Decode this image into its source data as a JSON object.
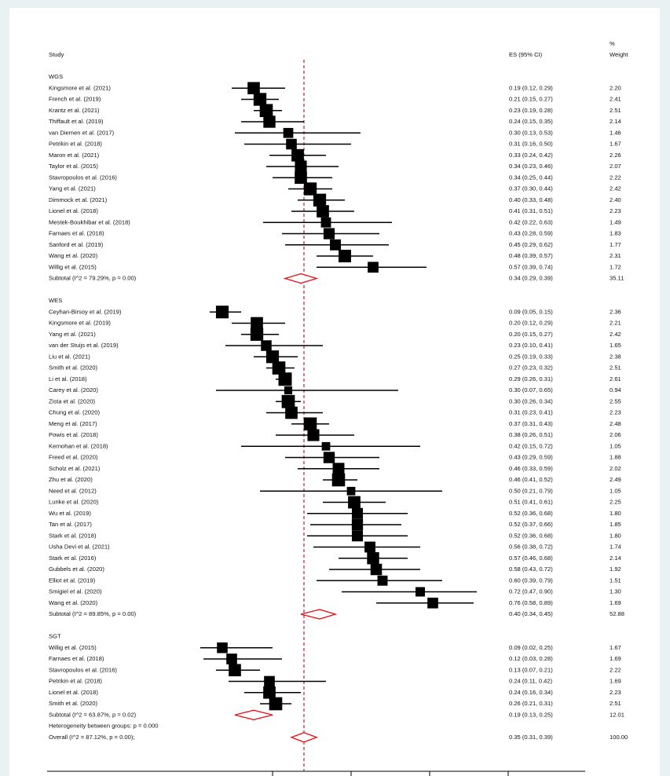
{
  "chart_data": {
    "type": "forest",
    "headers": {
      "study": "Study",
      "es": "ES (95% CI)",
      "weight_top": "%",
      "weight": "Weight"
    },
    "xlim": [
      0,
      1
    ],
    "xticks": [
      0.25,
      0.5,
      0.75,
      1
    ],
    "square_color": "#000000",
    "diamond_color": "#e8141c",
    "reference_color": "#b5252a",
    "groups": [
      {
        "name": "WGS",
        "studies": [
          {
            "name": "Kingsmore et al. (2021)",
            "es": 0.19,
            "ci": [
              0.12,
              0.29
            ],
            "label": "0.19 (0.12, 0.29)",
            "weight": 2.2,
            "weight_label": "2.20"
          },
          {
            "name": "French et al. (2019)",
            "es": 0.21,
            "ci": [
              0.15,
              0.27
            ],
            "label": "0.21 (0.15, 0.27)",
            "weight": 2.41,
            "weight_label": "2.41"
          },
          {
            "name": "Krantz et al. (2021)",
            "es": 0.23,
            "ci": [
              0.19,
              0.28
            ],
            "label": "0.23 (0.19, 0.28)",
            "weight": 2.51,
            "weight_label": "2.51"
          },
          {
            "name": "Thiffault et al. (2019)",
            "es": 0.24,
            "ci": [
              0.15,
              0.35
            ],
            "label": "0.24 (0.15, 0.35)",
            "weight": 2.14,
            "weight_label": "2.14"
          },
          {
            "name": "van Diemen et al. (2017)",
            "es": 0.3,
            "ci": [
              0.13,
              0.53
            ],
            "label": "0.30 (0.13, 0.53)",
            "weight": 1.46,
            "weight_label": "1.46"
          },
          {
            "name": "Petrikin et al. (2018)",
            "es": 0.31,
            "ci": [
              0.16,
              0.5
            ],
            "label": "0.31 (0.16, 0.50)",
            "weight": 1.67,
            "weight_label": "1.67"
          },
          {
            "name": "Maron et al. (2021)",
            "es": 0.33,
            "ci": [
              0.24,
              0.42
            ],
            "label": "0.33 (0.24, 0.42)",
            "weight": 2.26,
            "weight_label": "2.26"
          },
          {
            "name": "Taylor et al. (2015)",
            "es": 0.34,
            "ci": [
              0.23,
              0.46
            ],
            "label": "0.34 (0.23, 0.46)",
            "weight": 2.07,
            "weight_label": "2.07"
          },
          {
            "name": "Stavropoulos et al. (2016)",
            "es": 0.34,
            "ci": [
              0.25,
              0.44
            ],
            "label": "0.34 (0.25, 0.44)",
            "weight": 2.22,
            "weight_label": "2.22"
          },
          {
            "name": "Yang et al. (2021)",
            "es": 0.37,
            "ci": [
              0.3,
              0.44
            ],
            "label": "0.37 (0.30, 0.44)",
            "weight": 2.42,
            "weight_label": "2.42"
          },
          {
            "name": "Dimmock et al. (2021)",
            "es": 0.4,
            "ci": [
              0.33,
              0.48
            ],
            "label": "0.40 (0.33, 0.48)",
            "weight": 2.4,
            "weight_label": "2.40"
          },
          {
            "name": "Lionel et al. (2018)",
            "es": 0.41,
            "ci": [
              0.31,
              0.51
            ],
            "label": "0.41 (0.31, 0.51)",
            "weight": 2.23,
            "weight_label": "2.23"
          },
          {
            "name": "Mestek-Boukhibar et al. (2018)",
            "es": 0.42,
            "ci": [
              0.22,
              0.63
            ],
            "label": "0.42 (0.22, 0.63)",
            "weight": 1.49,
            "weight_label": "1.49"
          },
          {
            "name": "Farnaes et al. (2018)",
            "es": 0.43,
            "ci": [
              0.28,
              0.59
            ],
            "label": "0.43 (0.28, 0.59)",
            "weight": 1.83,
            "weight_label": "1.83"
          },
          {
            "name": "Sanford et al. (2019)",
            "es": 0.45,
            "ci": [
              0.29,
              0.62
            ],
            "label": "0.45 (0.29, 0.62)",
            "weight": 1.77,
            "weight_label": "1.77"
          },
          {
            "name": "Wang et al. (2020)",
            "es": 0.48,
            "ci": [
              0.39,
              0.57
            ],
            "label": "0.48 (0.39, 0.57)",
            "weight": 2.31,
            "weight_label": "2.31"
          },
          {
            "name": "Willig et al. (2015)",
            "es": 0.57,
            "ci": [
              0.39,
              0.74
            ],
            "label": "0.57 (0.39, 0.74)",
            "weight": 1.72,
            "weight_label": "1.72"
          }
        ],
        "subtotal": {
          "name": "Subtotal  (I^2 = 79.29%, p = 0.00)",
          "es": 0.34,
          "ci": [
            0.29,
            0.39
          ],
          "label": "0.34 (0.29, 0.39)",
          "weight": 35.11,
          "weight_label": "35.11"
        }
      },
      {
        "name": "WES",
        "studies": [
          {
            "name": "Ceyhan-Birsoy et al. (2019)",
            "es": 0.09,
            "ci": [
              0.05,
              0.15
            ],
            "label": "0.09 (0.05, 0.15)",
            "weight": 2.36,
            "weight_label": "2.36"
          },
          {
            "name": "Kingsmore et al. (2019)",
            "es": 0.2,
            "ci": [
              0.12,
              0.29
            ],
            "label": "0.20 (0.12, 0.29)",
            "weight": 2.21,
            "weight_label": "2.21"
          },
          {
            "name": "Yang et al. (2021)",
            "es": 0.2,
            "ci": [
              0.15,
              0.27
            ],
            "label": "0.20 (0.15, 0.27)",
            "weight": 2.42,
            "weight_label": "2.42"
          },
          {
            "name": "van der Stuijs et al. (2019)",
            "es": 0.23,
            "ci": [
              0.1,
              0.41
            ],
            "label": "0.23 (0.10, 0.41)",
            "weight": 1.65,
            "weight_label": "1.65"
          },
          {
            "name": "Liu et al. (2021)",
            "es": 0.25,
            "ci": [
              0.19,
              0.33
            ],
            "label": "0.25 (0.19, 0.33)",
            "weight": 2.38,
            "weight_label": "2.38"
          },
          {
            "name": "Smith et al. (2020)",
            "es": 0.27,
            "ci": [
              0.23,
              0.32
            ],
            "label": "0.27 (0.23, 0.32)",
            "weight": 2.51,
            "weight_label": "2.51"
          },
          {
            "name": "Li et al. (2018)",
            "es": 0.29,
            "ci": [
              0.26,
              0.31
            ],
            "label": "0.29 (0.26, 0.31)",
            "weight": 2.61,
            "weight_label": "2.61"
          },
          {
            "name": "Carey et al. (2020)",
            "es": 0.3,
            "ci": [
              0.07,
              0.65
            ],
            "label": "0.30 (0.07, 0.65)",
            "weight": 0.94,
            "weight_label": "0.94"
          },
          {
            "name": "Zista et al. (2020)",
            "es": 0.3,
            "ci": [
              0.26,
              0.34
            ],
            "label": "0.30 (0.26, 0.34)",
            "weight": 2.55,
            "weight_label": "2.55"
          },
          {
            "name": "Chung et al. (2020)",
            "es": 0.31,
            "ci": [
              0.23,
              0.41
            ],
            "label": "0.31 (0.23, 0.41)",
            "weight": 2.23,
            "weight_label": "2.23"
          },
          {
            "name": "Meng et al. (2017)",
            "es": 0.37,
            "ci": [
              0.31,
              0.43
            ],
            "label": "0.37 (0.31, 0.43)",
            "weight": 2.48,
            "weight_label": "2.48"
          },
          {
            "name": "Powis et al. (2018)",
            "es": 0.38,
            "ci": [
              0.26,
              0.51
            ],
            "label": "0.38 (0.26, 0.51)",
            "weight": 2.06,
            "weight_label": "2.06"
          },
          {
            "name": "Kernohan et al. (2018)",
            "es": 0.42,
            "ci": [
              0.15,
              0.72
            ],
            "label": "0.42 (0.15, 0.72)",
            "weight": 1.05,
            "weight_label": "1.05"
          },
          {
            "name": "Freed et al. (2020)",
            "es": 0.43,
            "ci": [
              0.29,
              0.59
            ],
            "label": "0.43 (0.29, 0.59)",
            "weight": 1.88,
            "weight_label": "1.88"
          },
          {
            "name": "Scholz et al. (2021)",
            "es": 0.46,
            "ci": [
              0.33,
              0.59
            ],
            "label": "0.46 (0.33, 0.59)",
            "weight": 2.02,
            "weight_label": "2.02"
          },
          {
            "name": "Zhu et al. (2020)",
            "es": 0.46,
            "ci": [
              0.41,
              0.52
            ],
            "label": "0.46 (0.41, 0.52)",
            "weight": 2.49,
            "weight_label": "2.49"
          },
          {
            "name": "Need et al. (2012)",
            "es": 0.5,
            "ci": [
              0.21,
              0.79
            ],
            "label": "0.50 (0.21, 0.79)",
            "weight": 1.05,
            "weight_label": "1.05"
          },
          {
            "name": "Lunke et al. (2020)",
            "es": 0.51,
            "ci": [
              0.41,
              0.61
            ],
            "label": "0.51 (0.41, 0.61)",
            "weight": 2.25,
            "weight_label": "2.25"
          },
          {
            "name": "Wu et al. (2019)",
            "es": 0.52,
            "ci": [
              0.36,
              0.68
            ],
            "label": "0.52 (0.36, 0.68)",
            "weight": 1.8,
            "weight_label": "1.80"
          },
          {
            "name": "Tan et al. (2017)",
            "es": 0.52,
            "ci": [
              0.37,
              0.66
            ],
            "label": "0.52 (0.37, 0.66)",
            "weight": 1.85,
            "weight_label": "1.85"
          },
          {
            "name": "Stark et al. (2018)",
            "es": 0.52,
            "ci": [
              0.36,
              0.68
            ],
            "label": "0.52 (0.36, 0.68)",
            "weight": 1.8,
            "weight_label": "1.80"
          },
          {
            "name": "Usha Devi et al. (2021)",
            "es": 0.56,
            "ci": [
              0.38,
              0.72
            ],
            "label": "0.56 (0.38, 0.72)",
            "weight": 1.74,
            "weight_label": "1.74"
          },
          {
            "name": "Stark et al. (2016)",
            "es": 0.57,
            "ci": [
              0.46,
              0.68
            ],
            "label": "0.57 (0.46, 0.68)",
            "weight": 2.14,
            "weight_label": "2.14"
          },
          {
            "name": "Gubbels et al. (2020)",
            "es": 0.58,
            "ci": [
              0.43,
              0.72
            ],
            "label": "0.58 (0.43, 0.72)",
            "weight": 1.92,
            "weight_label": "1.92"
          },
          {
            "name": "Elliot et al. (2019)",
            "es": 0.6,
            "ci": [
              0.39,
              0.79
            ],
            "label": "0.60 (0.39, 0.79)",
            "weight": 1.51,
            "weight_label": "1.51"
          },
          {
            "name": "Smigiel et al. (2020)",
            "es": 0.72,
            "ci": [
              0.47,
              0.9
            ],
            "label": "0.72 (0.47, 0.90)",
            "weight": 1.3,
            "weight_label": "1.30"
          },
          {
            "name": "Wang et al. (2020)",
            "es": 0.76,
            "ci": [
              0.58,
              0.89
            ],
            "label": "0.76 (0.58, 0.89)",
            "weight": 1.69,
            "weight_label": "1.69"
          }
        ],
        "subtotal": {
          "name": "Subtotal  (I^2 = 89.85%, p = 0.00)",
          "es": 0.4,
          "ci": [
            0.34,
            0.45
          ],
          "label": "0.40 (0.34, 0.45)",
          "weight": 52.88,
          "weight_label": "52.88"
        }
      },
      {
        "name": "SGT",
        "studies": [
          {
            "name": "Willig et al. (2015)",
            "es": 0.09,
            "ci": [
              0.02,
              0.25
            ],
            "label": "0.09 (0.02, 0.25)",
            "weight": 1.67,
            "weight_label": "1.67"
          },
          {
            "name": "Farnaes et al. (2018)",
            "es": 0.12,
            "ci": [
              0.03,
              0.28
            ],
            "label": "0.12 (0.03, 0.28)",
            "weight": 1.69,
            "weight_label": "1.69"
          },
          {
            "name": "Stavropoulos et al. (2016)",
            "es": 0.13,
            "ci": [
              0.07,
              0.21
            ],
            "label": "0.13 (0.07, 0.21)",
            "weight": 2.22,
            "weight_label": "2.22"
          },
          {
            "name": "Petrikin et al. (2018)",
            "es": 0.24,
            "ci": [
              0.11,
              0.42
            ],
            "label": "0.24 (0.11, 0.42)",
            "weight": 1.69,
            "weight_label": "1.69"
          },
          {
            "name": "Lionel et al. (2018)",
            "es": 0.24,
            "ci": [
              0.16,
              0.34
            ],
            "label": "0.24 (0.16, 0.34)",
            "weight": 2.23,
            "weight_label": "2.23"
          },
          {
            "name": "Smith et al. (2020)",
            "es": 0.26,
            "ci": [
              0.21,
              0.31
            ],
            "label": "0.26 (0.21, 0.31)",
            "weight": 2.51,
            "weight_label": "2.51"
          }
        ],
        "subtotal": {
          "name": "Subtotal  (I^2 = 63.87%, p = 0.02)",
          "es": 0.19,
          "ci": [
            0.13,
            0.25
          ],
          "label": "0.19 (0.13, 0.25)",
          "weight": 12.01,
          "weight_label": "12.01"
        }
      }
    ],
    "heterogeneity": "Heterogeneity between groups: p = 0.000",
    "overall": {
      "name": "Overall  (I^2 = 87.12%, p = 0.00);",
      "es": 0.35,
      "ci": [
        0.31,
        0.39
      ],
      "label": "0.35 (0.31, 0.39)",
      "weight": 100,
      "weight_label": "100.00"
    }
  }
}
